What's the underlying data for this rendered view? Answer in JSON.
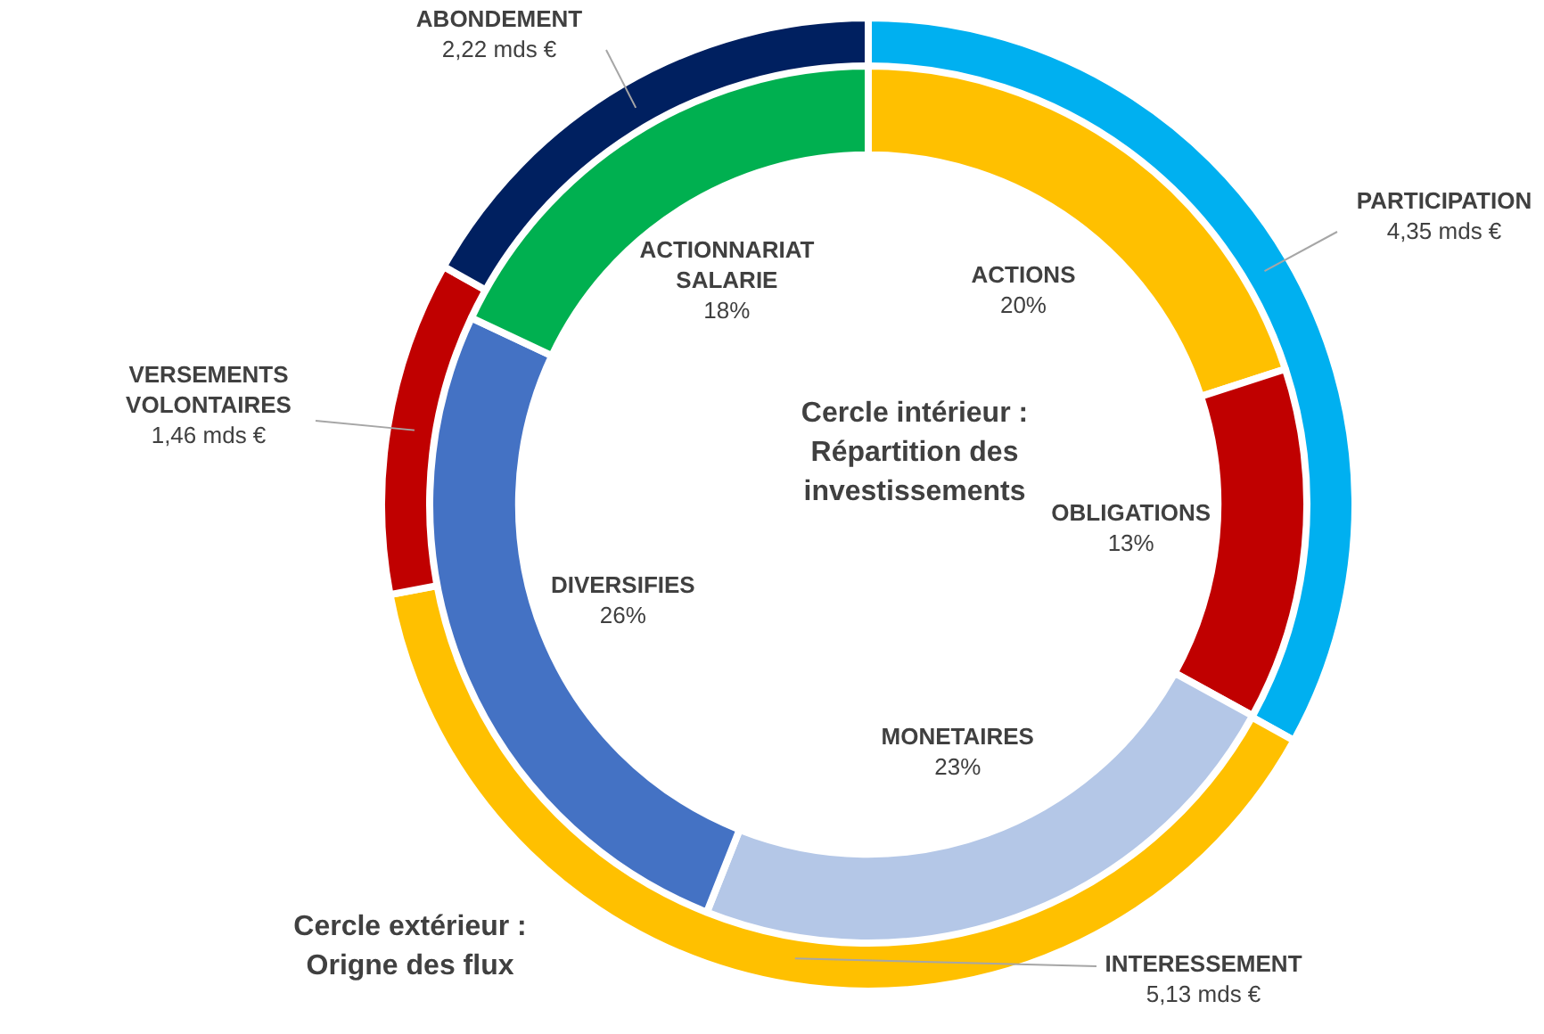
{
  "chart_data": [
    {
      "type": "donut",
      "title": "Cercle extérieur : Origne des flux",
      "categories": [
        "PARTICIPATION",
        "INTERESSEMENT",
        "VERSEMENTS VOLONTAIRES",
        "ABONDEMENT"
      ],
      "values": [
        4.35,
        5.13,
        1.46,
        2.22
      ],
      "colors": [
        "#00b0f0",
        "#ffc000",
        "#c00000",
        "#002060"
      ],
      "value_labels": [
        "4,35 mds €",
        "5,13 mds €",
        "1,46 mds €",
        "2,22 mds €"
      ]
    },
    {
      "type": "donut",
      "title": "Cercle intérieur : Répartition des investissements",
      "categories": [
        "ACTIONS",
        "OBLIGATIONS",
        "MONETAIRES",
        "DIVERSIFIES",
        "ACTIONNARIAT SALARIE"
      ],
      "values": [
        20,
        13,
        23,
        26,
        18
      ],
      "colors": [
        "#ffc000",
        "#c00000",
        "#b4c7e7",
        "#4472c4",
        "#00b050"
      ],
      "value_labels": [
        "20%",
        "13%",
        "23%",
        "26%",
        "18%"
      ]
    }
  ]
}
